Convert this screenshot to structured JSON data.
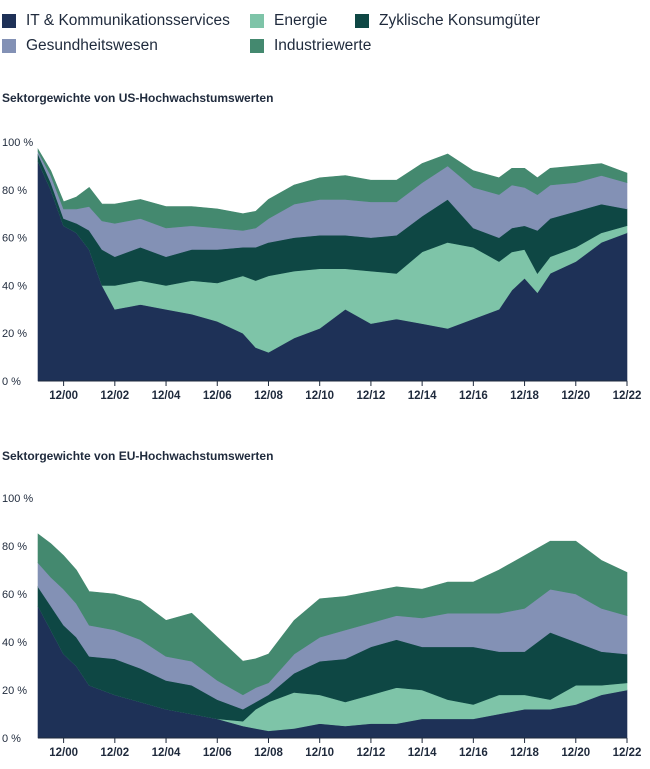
{
  "legend": [
    {
      "label": "IT & Kommunikationsservices",
      "color": "#1e3157"
    },
    {
      "label": "Energie",
      "color": "#7ec4a8"
    },
    {
      "label": "Zyklische Konsumgüter",
      "color": "#0e4744"
    },
    {
      "label": "Gesundheitswesen",
      "color": "#8391b5"
    },
    {
      "label": "Industriewerte",
      "color": "#44896f"
    }
  ],
  "chart_data": [
    {
      "type": "area",
      "stacked": true,
      "title": "Sektorgewichte von US-Hochwachstumswerten",
      "y_ticks": [
        "0 %",
        "20 %",
        "40 %",
        "60 %",
        "80 %",
        "100 %"
      ],
      "ylim": [
        0,
        100
      ],
      "x_ticks": [
        "12/00",
        "12/02",
        "12/04",
        "12/06",
        "12/08",
        "12/10",
        "12/12",
        "12/14",
        "12/16",
        "12/18",
        "12/20",
        "12/22"
      ],
      "x": [
        2000.0,
        2000.5,
        2001.0,
        2001.5,
        2002.0,
        2002.5,
        2003.0,
        2004.0,
        2005.0,
        2006.0,
        2007.0,
        2008.0,
        2008.5,
        2009.0,
        2010.0,
        2011.0,
        2012.0,
        2013.0,
        2014.0,
        2015.0,
        2016.0,
        2017.0,
        2018.0,
        2018.5,
        2019.0,
        2019.5,
        2020.0,
        2021.0,
        2022.0,
        2023.0
      ],
      "series": [
        {
          "name": "IT & Kommunikationsservices",
          "values": [
            92,
            80,
            65,
            62,
            55,
            40,
            30,
            32,
            30,
            28,
            25,
            20,
            14,
            12,
            18,
            22,
            30,
            24,
            26,
            24,
            22,
            26,
            30,
            38,
            43,
            37,
            45,
            50,
            58,
            62
          ]
        },
        {
          "name": "Energie",
          "values": [
            0,
            0,
            0,
            0,
            0,
            0,
            10,
            10,
            10,
            14,
            16,
            24,
            28,
            32,
            28,
            25,
            17,
            22,
            19,
            30,
            36,
            30,
            20,
            16,
            12,
            8,
            7,
            6,
            4,
            3
          ]
        },
        {
          "name": "Zyklische Konsumgüter",
          "values": [
            3,
            3,
            3,
            4,
            8,
            15,
            12,
            14,
            12,
            13,
            14,
            12,
            14,
            14,
            14,
            14,
            14,
            14,
            16,
            15,
            18,
            8,
            10,
            10,
            10,
            18,
            16,
            15,
            12,
            7
          ]
        },
        {
          "name": "Gesundheitswesen",
          "values": [
            1,
            3,
            4,
            6,
            10,
            12,
            14,
            12,
            12,
            10,
            9,
            7,
            8,
            10,
            14,
            15,
            15,
            15,
            14,
            14,
            14,
            17,
            18,
            18,
            16,
            15,
            14,
            12,
            12,
            11
          ]
        },
        {
          "name": "Industriewerte",
          "values": [
            1,
            2,
            3,
            5,
            8,
            7,
            8,
            8,
            9,
            8,
            8,
            7,
            7,
            8,
            8,
            9,
            10,
            9,
            9,
            8,
            5,
            7,
            7,
            7,
            8,
            7,
            7,
            7,
            5,
            4
          ]
        }
      ]
    },
    {
      "type": "area",
      "stacked": true,
      "title": "Sektorgewichte von EU-Hochwachstumswerten",
      "y_ticks": [
        "0 %",
        "20 %",
        "40 %",
        "60 %",
        "80 %",
        "100 %"
      ],
      "ylim": [
        0,
        100
      ],
      "x_ticks": [
        "12/00",
        "12/02",
        "12/04",
        "12/06",
        "12/08",
        "12/10",
        "12/12",
        "12/14",
        "12/16",
        "12/18",
        "12/20",
        "12/22"
      ],
      "x": [
        2000.0,
        2000.5,
        2001.0,
        2001.5,
        2002.0,
        2003.0,
        2004.0,
        2005.0,
        2006.0,
        2007.0,
        2008.0,
        2008.5,
        2009.0,
        2010.0,
        2011.0,
        2012.0,
        2013.0,
        2014.0,
        2015.0,
        2016.0,
        2017.0,
        2018.0,
        2019.0,
        2020.0,
        2021.0,
        2022.0,
        2023.0
      ],
      "series": [
        {
          "name": "IT & Kommunikationsservices",
          "values": [
            55,
            45,
            35,
            30,
            22,
            18,
            15,
            12,
            10,
            8,
            5,
            4,
            3,
            4,
            6,
            5,
            6,
            6,
            8,
            8,
            8,
            10,
            12,
            12,
            14,
            18,
            20
          ]
        },
        {
          "name": "Energie",
          "values": [
            0,
            0,
            0,
            0,
            0,
            0,
            0,
            0,
            0,
            0,
            2,
            8,
            12,
            15,
            12,
            10,
            12,
            15,
            12,
            8,
            6,
            8,
            6,
            4,
            8,
            4,
            3
          ]
        },
        {
          "name": "Zyklische Konsumgüter",
          "values": [
            8,
            10,
            12,
            12,
            12,
            15,
            14,
            12,
            12,
            8,
            5,
            3,
            3,
            8,
            14,
            18,
            20,
            20,
            18,
            22,
            24,
            18,
            18,
            28,
            18,
            14,
            12
          ]
        },
        {
          "name": "Gesundheitswesen",
          "values": [
            10,
            12,
            15,
            14,
            13,
            12,
            12,
            10,
            10,
            8,
            6,
            6,
            5,
            8,
            10,
            12,
            10,
            10,
            12,
            14,
            14,
            16,
            18,
            18,
            20,
            18,
            16
          ]
        },
        {
          "name": "Industriewerte",
          "values": [
            12,
            14,
            14,
            14,
            14,
            15,
            16,
            15,
            20,
            18,
            14,
            12,
            12,
            14,
            16,
            14,
            13,
            12,
            12,
            13,
            13,
            18,
            22,
            20,
            22,
            20,
            18
          ]
        }
      ]
    }
  ]
}
